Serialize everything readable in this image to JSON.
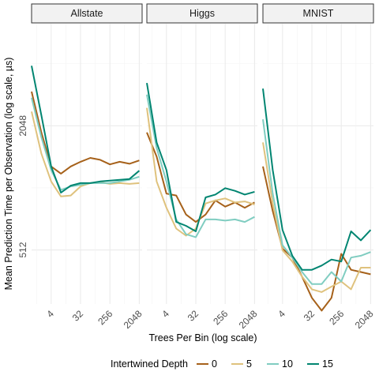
{
  "chart_data": {
    "type": "line",
    "xlabel": "Trees Per Bin (log scale)",
    "ylabel": "Mean Prediction Time per Observation (log scale, µs)",
    "x_scale": "log2",
    "y_scale": "log2",
    "xlim": [
      1,
      2500
    ],
    "ylim": [
      280,
      6400
    ],
    "x_ticks": [
      4,
      32,
      256,
      2048
    ],
    "x_tick_labels": [
      "4",
      "32",
      "256",
      "2048"
    ],
    "y_ticks": [
      512,
      2048
    ],
    "y_tick_labels": [
      "512",
      "2048"
    ],
    "grid": true,
    "legend": {
      "title": "Intertwined Depth",
      "placement": "bottom",
      "entries": [
        "0",
        "5",
        "10",
        "15"
      ]
    },
    "series_colors": {
      "0": "#a6611a",
      "5": "#dfc27d",
      "10": "#80cdc1",
      "15": "#018571"
    },
    "x": [
      1,
      2,
      4,
      8,
      16,
      32,
      64,
      128,
      256,
      512,
      1024,
      2048
    ],
    "panels": [
      {
        "title": "Allstate",
        "series": [
          {
            "name": "0",
            "values": [
              3000,
              1900,
              1300,
              1200,
              1300,
              1370,
              1430,
              1400,
              1330,
              1370,
              1340,
              1390
            ]
          },
          {
            "name": "5",
            "values": [
              2400,
              1500,
              1100,
              930,
              940,
              1040,
              1080,
              1090,
              1070,
              1080,
              1070,
              1080
            ]
          },
          {
            "name": "10",
            "values": [
              2800,
              1800,
              1250,
              1000,
              1040,
              1060,
              1080,
              1080,
              1080,
              1100,
              1120,
              1160
            ]
          },
          {
            "name": "15",
            "values": [
              4000,
              2300,
              1300,
              970,
              1050,
              1080,
              1080,
              1100,
              1110,
              1120,
              1130,
              1240
            ]
          }
        ]
      },
      {
        "title": "Higgs",
        "series": [
          {
            "name": "0",
            "values": [
              1900,
              1450,
              960,
              940,
              760,
              700,
              760,
              890,
              830,
              870,
              820,
              870
            ]
          },
          {
            "name": "5",
            "values": [
              2500,
              1100,
              820,
              650,
              600,
              650,
              860,
              890,
              910,
              870,
              880,
              850
            ]
          },
          {
            "name": "10",
            "values": [
              2900,
              1600,
              1100,
              720,
              610,
              590,
              720,
              720,
              710,
              720,
              700,
              740
            ]
          },
          {
            "name": "15",
            "values": [
              3300,
              1700,
              1250,
              700,
              670,
              630,
              920,
              950,
              1020,
              990,
              950,
              980
            ]
          }
        ]
      },
      {
        "title": "MNIST",
        "series": [
          {
            "name": "0",
            "values": [
              1300,
              790,
              520,
              470,
              380,
              300,
              260,
              300,
              490,
              410,
              400,
              390
            ]
          },
          {
            "name": "5",
            "values": [
              1700,
              860,
              510,
              450,
              380,
              330,
              320,
              340,
              360,
              330,
              420,
              420
            ]
          },
          {
            "name": "10",
            "values": [
              2200,
              960,
              540,
              470,
              400,
              350,
              350,
              400,
              360,
              470,
              480,
              500
            ]
          },
          {
            "name": "15",
            "values": [
              3100,
              1250,
              640,
              480,
              410,
              410,
              430,
              460,
              450,
              630,
              570,
              640
            ]
          }
        ]
      }
    ]
  }
}
